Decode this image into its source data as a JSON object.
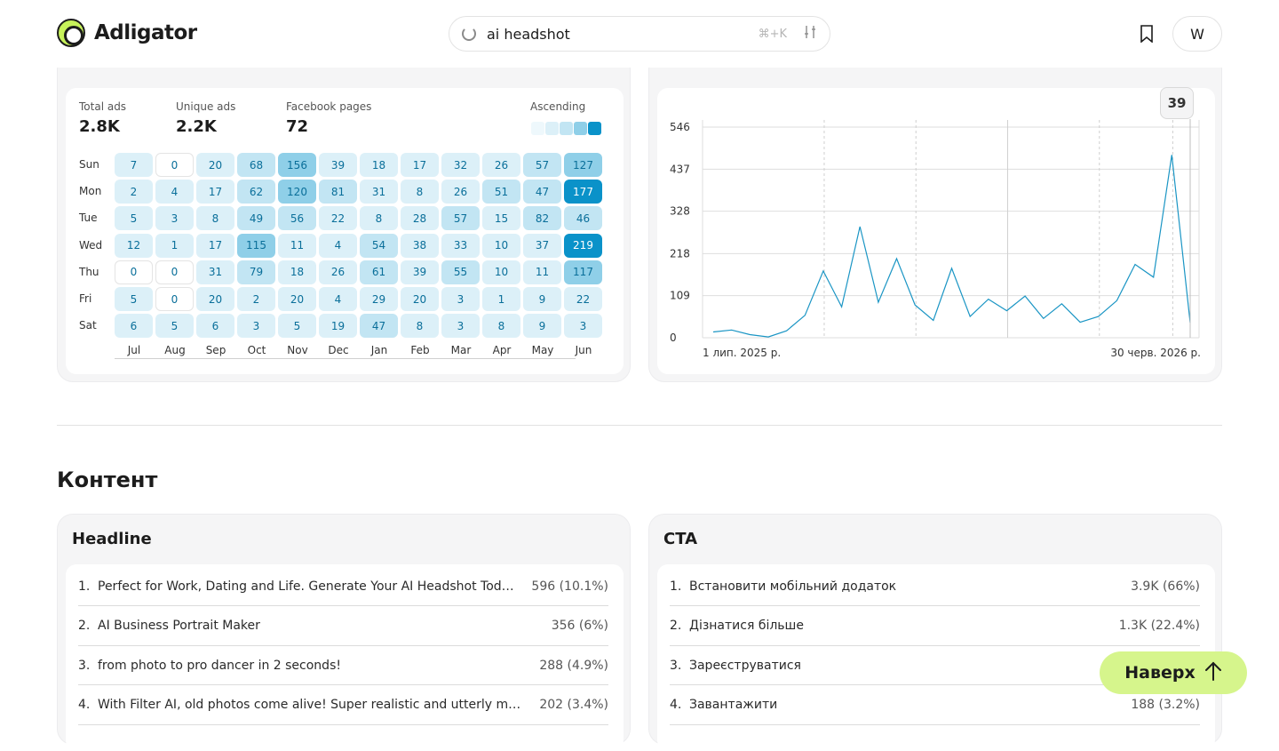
{
  "header": {
    "logo_text": "Adligator",
    "search_value": "ai headshot",
    "search_shortcut": "⌘+K",
    "avatar_initial": "W"
  },
  "heatmap": {
    "stats": [
      {
        "label": "Total ads",
        "value": "2.8K"
      },
      {
        "label": "Unique ads",
        "value": "2.2K"
      },
      {
        "label": "Facebook pages",
        "value": "72"
      }
    ],
    "sort_label": "Ascending",
    "days": [
      "Sun",
      "Mon",
      "Tue",
      "Wed",
      "Thu",
      "Fri",
      "Sat"
    ],
    "months": [
      "Jul",
      "Aug",
      "Sep",
      "Oct",
      "Nov",
      "Dec",
      "Jan",
      "Feb",
      "Mar",
      "Apr",
      "May",
      "Jun"
    ],
    "grid": [
      [
        7,
        0,
        20,
        68,
        156,
        39,
        18,
        17,
        32,
        26,
        57,
        127
      ],
      [
        2,
        4,
        17,
        62,
        120,
        81,
        31,
        8,
        26,
        51,
        47,
        177
      ],
      [
        5,
        3,
        8,
        49,
        56,
        22,
        8,
        28,
        57,
        15,
        82,
        46
      ],
      [
        12,
        1,
        17,
        115,
        11,
        4,
        54,
        38,
        33,
        10,
        37,
        219
      ],
      [
        0,
        0,
        31,
        79,
        18,
        26,
        61,
        39,
        55,
        10,
        11,
        117
      ],
      [
        5,
        0,
        20,
        2,
        20,
        4,
        29,
        20,
        3,
        1,
        9,
        22
      ],
      [
        6,
        5,
        6,
        3,
        5,
        19,
        47,
        8,
        3,
        8,
        9,
        3
      ]
    ],
    "colors": [
      "#eef8fc",
      "#dcf0f8",
      "#c2e5f3",
      "#8fcfe8",
      "#0a92c9"
    ]
  },
  "chart_data": {
    "type": "line",
    "x_start_label": "1 лип. 2025 р.",
    "x_end_label": "30 черв. 2026 р.",
    "ylim": [
      0,
      546
    ],
    "yticks": [
      0,
      109,
      218,
      328,
      437,
      546
    ],
    "values": [
      15,
      20,
      8,
      2,
      18,
      58,
      173,
      80,
      288,
      92,
      205,
      85,
      45,
      180,
      55,
      100,
      70,
      108,
      50,
      88,
      40,
      55,
      96,
      190,
      157,
      474,
      39
    ],
    "highlight_value": "39",
    "color": "#1a95c4"
  },
  "content": {
    "section_title": "Контент",
    "headline": {
      "title": "Headline",
      "rows": [
        {
          "num": "1.",
          "text": "Perfect for Work, Dating and Life. Generate Your AI Headshot Today 👇",
          "value": "596 (10.1%)"
        },
        {
          "num": "2.",
          "text": "AI Business Portrait Maker",
          "value": "356 (6%)"
        },
        {
          "num": "3.",
          "text": "from photo to pro dancer in 2 seconds!",
          "value": "288 (4.9%)"
        },
        {
          "num": "4.",
          "text": "With Filter AI, old photos come alive! Super realistic and utterly mesmerizing",
          "value": "202 (3.4%)"
        }
      ]
    },
    "cta": {
      "title": "CTA",
      "rows": [
        {
          "num": "1.",
          "text": "Встановити мобільний додаток",
          "value": "3.9K (66%)"
        },
        {
          "num": "2.",
          "text": "Дізнатися більше",
          "value": "1.3K (22.4%)"
        },
        {
          "num": "3.",
          "text": "Зареєструватися",
          "value": ""
        },
        {
          "num": "4.",
          "text": "Завантажити",
          "value": "188 (3.2%)"
        }
      ]
    }
  },
  "to_top_label": "Наверх"
}
